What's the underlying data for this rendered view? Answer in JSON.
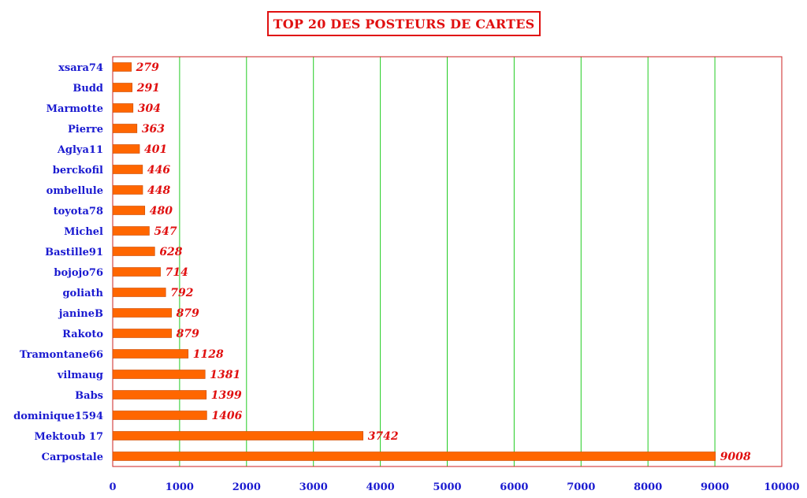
{
  "chart_data": {
    "type": "bar",
    "orientation": "horizontal",
    "title": "TOP 20 DES POSTEURS DE CARTES",
    "xlabel": "",
    "ylabel": "",
    "xlim": [
      0,
      10000
    ],
    "x_ticks": [
      "0",
      "1000",
      "2000",
      "3000",
      "4000",
      "5000",
      "6000",
      "7000",
      "8000",
      "9000",
      "10000"
    ],
    "grid": "vertical",
    "legend": "none",
    "categories": [
      "xsara74",
      "Budd",
      "Marmotte",
      "Pierre",
      "Aglya11",
      "berckofil",
      "ombellule",
      "toyota78",
      "Michel",
      "Bastille91",
      "bojojo76",
      "goliath",
      "janineB",
      "Rakoto",
      "Tramontane66",
      "vilmaug",
      "Babs",
      "dominique1594",
      "Mektoub 17",
      "Carpostale"
    ],
    "values": [
      279,
      291,
      304,
      363,
      401,
      446,
      448,
      480,
      547,
      628,
      714,
      792,
      879,
      879,
      1128,
      1381,
      1399,
      1406,
      3742,
      9008
    ],
    "value_labels": [
      "279",
      "291",
      "304",
      "363",
      "401",
      "446",
      "448",
      "480",
      "547",
      "628",
      "714",
      "792",
      "879",
      "879",
      "1128",
      "1381",
      "1399",
      "1406",
      "3742",
      "9008"
    ],
    "colors": {
      "bar": "#ff6600",
      "bar_edge": "#c84800",
      "gridline": "#22cc22",
      "plot_border": "#cc2222",
      "category_text": "#1a1ad0",
      "value_text": "#e01010",
      "title_text": "#e01010"
    }
  }
}
